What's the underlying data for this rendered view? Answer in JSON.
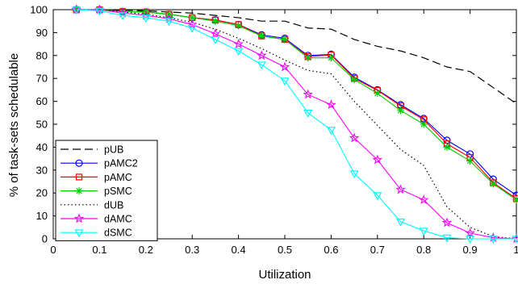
{
  "chart_data": {
    "type": "line",
    "xlabel": "Utilization",
    "ylabel": "% of task-sets schedulable",
    "xlim": [
      0,
      1
    ],
    "ylim": [
      0,
      100
    ],
    "x_ticks": [
      "0",
      "0.1",
      "0.2",
      "0.3",
      "0.4",
      "0.5",
      "0.6",
      "0.7",
      "0.8",
      "0.9",
      "1"
    ],
    "y_ticks": [
      "0",
      "10",
      "20",
      "30",
      "40",
      "50",
      "60",
      "70",
      "80",
      "90",
      "100"
    ],
    "grid": false,
    "legend_position": "bottom-left",
    "x": [
      0.05,
      0.1,
      0.15,
      0.2,
      0.25,
      0.3,
      0.35,
      0.4,
      0.45,
      0.5,
      0.55,
      0.6,
      0.65,
      0.7,
      0.75,
      0.8,
      0.85,
      0.9,
      0.95,
      1.0
    ],
    "series": [
      {
        "name": "pUB",
        "color": "#000000",
        "dash": "dashed",
        "marker": "none",
        "values": [
          100,
          100,
          99.8,
          99.5,
          99,
          98.5,
          97.5,
          96.5,
          95,
          95,
          92,
          91.5,
          87,
          84,
          82,
          79,
          75,
          73,
          66,
          59
        ]
      },
      {
        "name": "pAMC2",
        "color": "#0000ff",
        "dash": "solid",
        "marker": "circle",
        "values": [
          100,
          100,
          99.2,
          99,
          98,
          96.5,
          95.5,
          93.5,
          89,
          87.5,
          80,
          80.5,
          70.5,
          65,
          58.5,
          52.5,
          43,
          37,
          26,
          19
        ]
      },
      {
        "name": "pAMC",
        "color": "#ff0000",
        "dash": "solid",
        "marker": "square",
        "values": [
          100,
          100,
          99.2,
          99,
          98,
          96.5,
          95.5,
          93.5,
          88.5,
          87,
          79.5,
          80.2,
          70,
          64.8,
          58,
          52,
          41.5,
          35.5,
          24.5,
          17.5
        ]
      },
      {
        "name": "pSMC",
        "color": "#00cc00",
        "dash": "solid",
        "marker": "star",
        "values": [
          100,
          100,
          99.2,
          99,
          98,
          96.5,
          95,
          93,
          88.5,
          87,
          79,
          79,
          69.5,
          63.5,
          56,
          50,
          40,
          34,
          24,
          17
        ]
      },
      {
        "name": "dUB",
        "color": "#000000",
        "dash": "dotted",
        "marker": "none",
        "values": [
          100,
          100,
          99,
          98,
          96.5,
          94.5,
          91.5,
          87.5,
          83,
          78,
          73.5,
          72,
          60,
          49.5,
          39,
          32,
          14,
          5,
          1,
          0
        ]
      },
      {
        "name": "dAMC",
        "color": "#ff00ff",
        "dash": "solid",
        "marker": "pentagram",
        "values": [
          100,
          100,
          98.5,
          97.5,
          96,
          93.5,
          89.5,
          85,
          80,
          75,
          63,
          58.5,
          44,
          34.5,
          21.5,
          17,
          7,
          2.5,
          0.5,
          0
        ]
      },
      {
        "name": "dSMC",
        "color": "#00ffff",
        "dash": "solid",
        "marker": "triangle-down",
        "values": [
          100,
          99.5,
          97.5,
          96.5,
          95,
          92,
          87,
          82,
          76,
          69,
          55,
          47.5,
          28.5,
          19,
          7.5,
          3.5,
          0.5,
          0,
          0,
          0
        ]
      }
    ]
  }
}
